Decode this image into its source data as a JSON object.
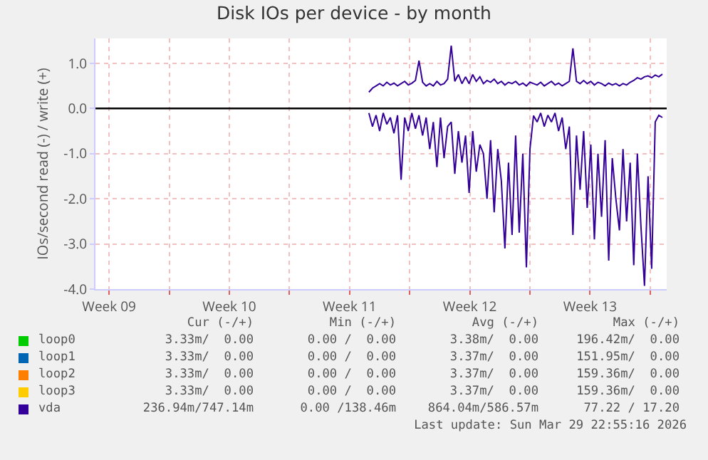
{
  "chart_data": {
    "type": "line",
    "title": "Disk IOs per device - by month",
    "ylabel": "IOs/second read (-) / write (+)",
    "x": [
      "2026-03-13T15:00",
      "2026-03-13T20:00",
      "2026-03-14T01:00",
      "2026-03-14T06:00",
      "2026-03-14T11:00",
      "2026-03-14T16:00",
      "2026-03-14T21:00",
      "2026-03-15T02:00",
      "2026-03-15T07:00",
      "2026-03-15T12:00",
      "2026-03-15T17:00",
      "2026-03-15T22:00",
      "2026-03-16T03:00",
      "2026-03-16T08:00",
      "2026-03-16T13:00",
      "2026-03-16T18:00",
      "2026-03-16T23:00",
      "2026-03-17T04:00",
      "2026-03-17T09:00",
      "2026-03-17T14:00",
      "2026-03-17T19:00",
      "2026-03-18T00:00",
      "2026-03-18T05:00",
      "2026-03-18T10:00",
      "2026-03-18T15:00",
      "2026-03-18T20:00",
      "2026-03-19T01:00",
      "2026-03-19T06:00",
      "2026-03-19T11:00",
      "2026-03-19T16:00",
      "2026-03-19T21:00",
      "2026-03-20T02:00",
      "2026-03-20T07:00",
      "2026-03-20T12:00",
      "2026-03-20T17:00",
      "2026-03-20T22:00",
      "2026-03-21T03:00",
      "2026-03-21T08:00",
      "2026-03-21T13:00",
      "2026-03-21T18:00",
      "2026-03-21T23:00",
      "2026-03-22T04:00",
      "2026-03-22T09:00",
      "2026-03-22T14:00",
      "2026-03-22T19:00",
      "2026-03-23T00:00",
      "2026-03-23T05:00",
      "2026-03-23T10:00",
      "2026-03-23T15:00",
      "2026-03-23T20:00",
      "2026-03-24T01:00",
      "2026-03-24T06:00",
      "2026-03-24T11:00",
      "2026-03-24T16:00",
      "2026-03-24T21:00",
      "2026-03-25T02:00",
      "2026-03-25T07:00",
      "2026-03-25T12:00",
      "2026-03-25T17:00",
      "2026-03-25T22:00",
      "2026-03-26T03:00",
      "2026-03-26T08:00",
      "2026-03-26T13:00",
      "2026-03-26T18:00",
      "2026-03-26T23:00",
      "2026-03-27T04:00",
      "2026-03-27T09:00",
      "2026-03-27T14:00",
      "2026-03-27T19:00",
      "2026-03-28T00:00",
      "2026-03-28T05:00",
      "2026-03-28T10:00",
      "2026-03-28T15:00",
      "2026-03-28T20:00",
      "2026-03-29T01:00",
      "2026-03-29T06:00",
      "2026-03-29T11:00",
      "2026-03-29T16:00",
      "2026-03-29T21:00",
      "2026-03-30T02:00",
      "2026-03-30T07:00",
      "2026-03-30T12:00",
      "2026-03-30T17:00"
    ],
    "series": [
      {
        "name": "loop0",
        "color": "#00cc00",
        "values": [
          null,
          null,
          null,
          null,
          null,
          null,
          null,
          null,
          null,
          null,
          null,
          null,
          null,
          null,
          null,
          null,
          null,
          null,
          null,
          null,
          null,
          null,
          null,
          null,
          null,
          null,
          null,
          null,
          null,
          null,
          null,
          null,
          null,
          null,
          null,
          null,
          null,
          null,
          null,
          null,
          null,
          null,
          null,
          null,
          null,
          null,
          null,
          null,
          null,
          null,
          null,
          null,
          null,
          null,
          null,
          null,
          null,
          null,
          null,
          null,
          null,
          null,
          null,
          null,
          null,
          null,
          null,
          null,
          null,
          null,
          null,
          null,
          null,
          null,
          null,
          null,
          null,
          null,
          null,
          null,
          null,
          null,
          null
        ]
      },
      {
        "name": "loop1",
        "color": "#0066b3",
        "values": [
          null,
          null,
          null,
          null,
          null,
          null,
          null,
          null,
          null,
          null,
          null,
          null,
          null,
          null,
          null,
          null,
          null,
          null,
          null,
          null,
          null,
          null,
          null,
          null,
          null,
          null,
          null,
          null,
          null,
          null,
          null,
          null,
          null,
          null,
          null,
          null,
          null,
          null,
          null,
          null,
          null,
          null,
          null,
          null,
          null,
          null,
          null,
          null,
          null,
          null,
          null,
          null,
          null,
          null,
          null,
          null,
          null,
          null,
          null,
          null,
          null,
          null,
          null,
          null,
          null,
          null,
          null,
          null,
          null,
          null,
          null,
          null,
          null,
          null,
          null,
          null,
          null,
          null,
          null,
          null,
          null,
          null,
          null
        ]
      },
      {
        "name": "loop2",
        "color": "#ff8000",
        "values": [
          null,
          null,
          null,
          null,
          null,
          null,
          null,
          null,
          null,
          null,
          null,
          null,
          null,
          null,
          null,
          null,
          null,
          null,
          null,
          null,
          null,
          null,
          null,
          null,
          null,
          null,
          null,
          null,
          null,
          null,
          null,
          null,
          null,
          null,
          null,
          null,
          null,
          null,
          null,
          null,
          null,
          null,
          null,
          null,
          null,
          null,
          null,
          null,
          null,
          null,
          null,
          null,
          null,
          null,
          null,
          null,
          null,
          null,
          null,
          null,
          null,
          null,
          null,
          null,
          null,
          null,
          null,
          null,
          null,
          null,
          null,
          null,
          null,
          null,
          null,
          null,
          null,
          null,
          null,
          null,
          null,
          null,
          null
        ]
      },
      {
        "name": "loop3",
        "color": "#ffcc00",
        "values": [
          null,
          null,
          null,
          null,
          null,
          null,
          null,
          null,
          null,
          null,
          null,
          null,
          null,
          null,
          null,
          null,
          null,
          null,
          null,
          null,
          null,
          null,
          null,
          null,
          null,
          null,
          null,
          null,
          null,
          null,
          null,
          null,
          null,
          null,
          null,
          null,
          null,
          null,
          null,
          null,
          null,
          null,
          null,
          null,
          null,
          null,
          null,
          null,
          null,
          null,
          null,
          null,
          null,
          null,
          null,
          null,
          null,
          null,
          null,
          null,
          null,
          null,
          null,
          null,
          null,
          null,
          null,
          null,
          null,
          null,
          null,
          null,
          null,
          null,
          null,
          null,
          null,
          null,
          null,
          null,
          null,
          null,
          null
        ]
      },
      {
        "name": "vda",
        "color": "#330099",
        "values": [
          -0.1,
          -0.4,
          -0.15,
          -0.5,
          -0.1,
          -0.35,
          -0.2,
          -0.55,
          -0.15,
          -1.58,
          -0.2,
          -0.5,
          -0.1,
          -0.45,
          -0.15,
          -0.6,
          -0.2,
          -0.9,
          -0.3,
          -1.3,
          -0.2,
          -1.1,
          -0.4,
          -0.3,
          -1.45,
          -0.5,
          -1.2,
          -0.6,
          -1.87,
          -0.5,
          -1.4,
          -0.8,
          -1.0,
          -2.0,
          -0.7,
          -2.3,
          -0.9,
          -1.6,
          -3.1,
          -1.2,
          -2.8,
          -0.6,
          -2.75,
          -1.0,
          -3.52,
          -0.9,
          -0.16,
          -0.3,
          -0.1,
          -0.4,
          -0.15,
          -0.3,
          -0.1,
          -0.5,
          -0.2,
          -0.9,
          -0.4,
          -2.8,
          -0.6,
          -1.8,
          -0.5,
          -2.2,
          -0.8,
          -2.9,
          -1.0,
          -2.4,
          -0.7,
          -3.37,
          -1.1,
          -2.0,
          -2.7,
          -0.9,
          -2.5,
          -1.2,
          -3.47,
          -1.0,
          -2.6,
          -3.93,
          -1.5,
          -3.55,
          -0.3,
          -0.15,
          -0.2
        ]
      },
      {
        "color": "#330099",
        "values": [
          0.36,
          0.45,
          0.5,
          0.55,
          0.5,
          0.58,
          0.52,
          0.56,
          0.5,
          0.55,
          0.6,
          0.52,
          0.56,
          0.62,
          1.06,
          0.58,
          0.5,
          0.55,
          0.5,
          0.6,
          0.52,
          0.55,
          0.65,
          1.39,
          0.6,
          0.75,
          0.55,
          0.7,
          0.55,
          0.75,
          0.6,
          0.7,
          0.55,
          0.62,
          0.58,
          0.65,
          0.55,
          0.6,
          0.52,
          0.58,
          0.55,
          0.6,
          0.52,
          0.56,
          0.5,
          0.58,
          0.55,
          0.52,
          0.58,
          0.5,
          0.55,
          0.6,
          0.52,
          0.56,
          0.5,
          0.55,
          0.6,
          1.33,
          0.6,
          0.55,
          0.62,
          0.55,
          0.6,
          0.52,
          0.58,
          0.55,
          0.5,
          0.56,
          0.52,
          0.55,
          0.5,
          0.55,
          0.52,
          0.58,
          0.62,
          0.68,
          0.65,
          0.7,
          0.72,
          0.68,
          0.74,
          0.7,
          0.76
        ]
      }
    ],
    "xlim": [
      "2026-02-25T17:00",
      "2026-03-30T23:00"
    ],
    "xticks": [
      {
        "value": "2026-02-26T12:00",
        "label": "Week 09"
      },
      {
        "value": "2026-03-02",
        "label": null
      },
      {
        "value": "2026-03-05T12:00",
        "label": "Week 10"
      },
      {
        "value": "2026-03-09",
        "label": null
      },
      {
        "value": "2026-03-12T12:00",
        "label": "Week 11"
      },
      {
        "value": "2026-03-16",
        "label": null
      },
      {
        "value": "2026-03-19T12:00",
        "label": "Week 12"
      },
      {
        "value": "2026-03-23",
        "label": null
      },
      {
        "value": "2026-03-26T12:00",
        "label": "Week 13"
      },
      {
        "value": "2026-03-30",
        "label": null
      }
    ],
    "ylim": [
      -4,
      1.55
    ],
    "yticks": [
      {
        "value": -4,
        "label": "-4.0"
      },
      {
        "value": -3,
        "label": "-3.0"
      },
      {
        "value": -2,
        "label": "-2.0"
      },
      {
        "value": -1,
        "label": "-1.0"
      },
      {
        "value": 0,
        "label": "0.0"
      },
      {
        "value": 1,
        "label": "1.0"
      }
    ],
    "grid": true,
    "legend": "bottom",
    "marker": "none",
    "line_style": "solid",
    "ref_lines": [
      {
        "axis": "y",
        "value": 0,
        "color": "#000000"
      }
    ],
    "annotations": [
      "Cur (-/+)",
      "Min (-/+)",
      "Avg (-/+)",
      "Max (-/+)",
      "3.33m/  0.00",
      "0.00 /  0.00",
      "3.38m/  0.00",
      "196.42m/  0.00",
      "3.33m/  0.00",
      "0.00 /  0.00",
      "3.37m/  0.00",
      "151.95m/  0.00",
      "3.33m/  0.00",
      "0.00 /  0.00",
      "3.37m/  0.00",
      "159.36m/  0.00",
      "3.33m/  0.00",
      "0.00 /  0.00",
      "3.37m/  0.00",
      "159.36m/  0.00",
      "236.94m/747.14m",
      "0.00 /138.46m",
      "864.04m/586.57m",
      "77.22 / 17.20",
      "Last update: Sun Mar 29 22:55:16 2026"
    ]
  }
}
